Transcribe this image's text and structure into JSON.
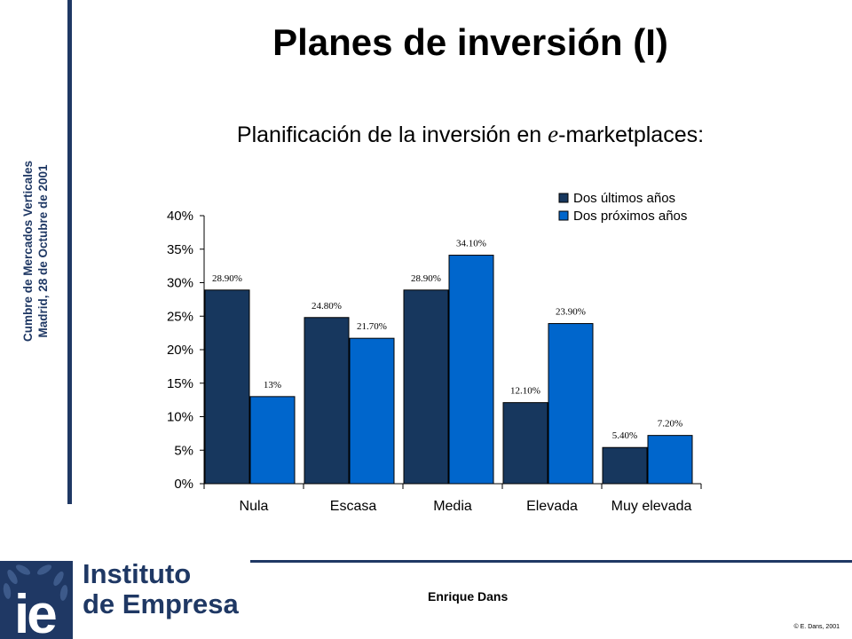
{
  "slide": {
    "title": "Planes de inversión (I)",
    "subtitle_pre": "Planificación de la inversión en ",
    "subtitle_em": "e",
    "subtitle_post": "-marketplaces:",
    "side_line1": "Cumbre de Mercados Verticales",
    "side_line2": "Madrid, 28 de Octubre de 2001",
    "logo_line1": "Instituto",
    "logo_line2": "de Empresa",
    "logo_mark": "ie",
    "author": "Enrique Dans",
    "copyright": "© E. Dans, 2001"
  },
  "colors": {
    "series1": "#17375e",
    "series2": "#0066cc",
    "brand": "#1f3864"
  },
  "chart_data": {
    "type": "bar",
    "categories": [
      "Nula",
      "Escasa",
      "Media",
      "Elevada",
      "Muy elevada"
    ],
    "series": [
      {
        "name": "Dos últimos años",
        "values": [
          28.9,
          24.8,
          28.9,
          12.1,
          5.4
        ],
        "labels": [
          "28.90%",
          "24.80%",
          "28.90%",
          "12.10%",
          "5.40%"
        ]
      },
      {
        "name": "Dos próximos años",
        "values": [
          13,
          21.7,
          34.1,
          23.9,
          7.2
        ],
        "labels": [
          "13%",
          "21.70%",
          "34.10%",
          "23.90%",
          "7.20%"
        ]
      }
    ],
    "ylim": [
      0,
      40
    ],
    "yticks": [
      "0%",
      "5%",
      "10%",
      "15%",
      "20%",
      "25%",
      "30%",
      "35%",
      "40%"
    ],
    "legend_position": "top-right",
    "grid": false
  }
}
